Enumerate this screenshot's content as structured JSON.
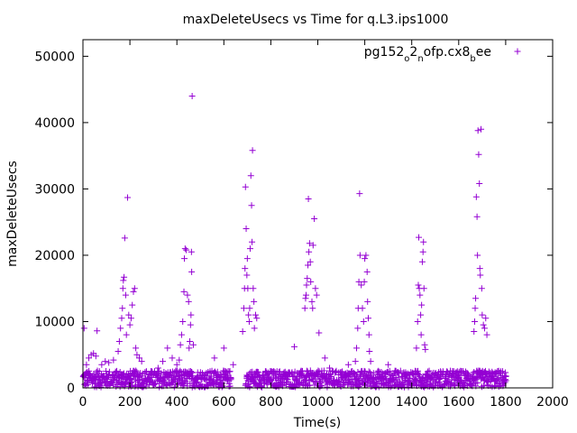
{
  "chart_data": {
    "type": "scatter",
    "title": "maxDeleteUsecs vs Time for q.L3.ips1000",
    "xlabel": "Time(s)",
    "ylabel": "maxDeleteUsecs",
    "xlim": [
      0,
      2000
    ],
    "ylim": [
      0,
      52500
    ],
    "x_ticks": [
      0,
      200,
      400,
      600,
      800,
      1000,
      1200,
      1400,
      1600,
      1800,
      2000
    ],
    "y_ticks": [
      0,
      10000,
      20000,
      30000,
      40000,
      50000
    ],
    "grid": false,
    "legend_position": "top-right",
    "colors": {
      "series": "#9400d3",
      "axis": "#000000"
    },
    "series": [
      {
        "name": "pg152_o2_nofp.cx8_bee",
        "legend_parts": [
          {
            "text": "pg152",
            "sub": false
          },
          {
            "text": "o",
            "sub": true
          },
          {
            "text": "2",
            "sub": false
          },
          {
            "text": "n",
            "sub": true
          },
          {
            "text": "ofp.cx8",
            "sub": false
          },
          {
            "text": "b",
            "sub": true
          },
          {
            "text": "ee",
            "sub": false
          }
        ],
        "points": [
          [
            5,
            9000
          ],
          [
            15,
            3500
          ],
          [
            25,
            4500
          ],
          [
            35,
            5000
          ],
          [
            45,
            5200
          ],
          [
            55,
            4800
          ],
          [
            60,
            8600
          ],
          [
            70,
            2500
          ],
          [
            80,
            3500
          ],
          [
            95,
            4000
          ],
          [
            110,
            3800
          ],
          [
            130,
            4200
          ],
          [
            150,
            5500
          ],
          [
            155,
            7000
          ],
          [
            160,
            9000
          ],
          [
            165,
            10500
          ],
          [
            168,
            12000
          ],
          [
            170,
            15000
          ],
          [
            172,
            16200
          ],
          [
            175,
            16700
          ],
          [
            178,
            22600
          ],
          [
            182,
            14000
          ],
          [
            185,
            8000
          ],
          [
            190,
            28700
          ],
          [
            195,
            11000
          ],
          [
            200,
            9500
          ],
          [
            205,
            10500
          ],
          [
            210,
            12500
          ],
          [
            215,
            14500
          ],
          [
            220,
            15000
          ],
          [
            225,
            6000
          ],
          [
            230,
            5000
          ],
          [
            240,
            4500
          ],
          [
            250,
            4000
          ],
          [
            270,
            2500
          ],
          [
            300,
            2000
          ],
          [
            320,
            3000
          ],
          [
            340,
            4000
          ],
          [
            360,
            6000
          ],
          [
            380,
            4500
          ],
          [
            400,
            3500
          ],
          [
            410,
            4200
          ],
          [
            415,
            6500
          ],
          [
            420,
            8000
          ],
          [
            425,
            10000
          ],
          [
            430,
            14500
          ],
          [
            432,
            19500
          ],
          [
            435,
            21000
          ],
          [
            440,
            20800
          ],
          [
            445,
            14000
          ],
          [
            450,
            13000
          ],
          [
            452,
            6000
          ],
          [
            455,
            7000
          ],
          [
            458,
            9500
          ],
          [
            460,
            11000
          ],
          [
            462,
            20500
          ],
          [
            463,
            17500
          ],
          [
            465,
            44000
          ],
          [
            470,
            6500
          ],
          [
            520,
            2000
          ],
          [
            560,
            4500
          ],
          [
            600,
            6000
          ],
          [
            640,
            3500
          ],
          [
            680,
            8500
          ],
          [
            685,
            12000
          ],
          [
            688,
            15000
          ],
          [
            690,
            18000
          ],
          [
            692,
            30300
          ],
          [
            695,
            24000
          ],
          [
            698,
            17000
          ],
          [
            700,
            19500
          ],
          [
            702,
            15000
          ],
          [
            705,
            11000
          ],
          [
            708,
            10000
          ],
          [
            710,
            12000
          ],
          [
            712,
            21000
          ],
          [
            715,
            32000
          ],
          [
            718,
            27500
          ],
          [
            720,
            22000
          ],
          [
            722,
            35800
          ],
          [
            725,
            15000
          ],
          [
            728,
            13000
          ],
          [
            730,
            9000
          ],
          [
            735,
            11000
          ],
          [
            740,
            10500
          ],
          [
            780,
            2000
          ],
          [
            820,
            1500
          ],
          [
            860,
            2000
          ],
          [
            900,
            6200
          ],
          [
            930,
            2000
          ],
          [
            945,
            12000
          ],
          [
            948,
            13500
          ],
          [
            950,
            14000
          ],
          [
            952,
            15500
          ],
          [
            955,
            16500
          ],
          [
            958,
            18500
          ],
          [
            960,
            28500
          ],
          [
            962,
            20500
          ],
          [
            965,
            21800
          ],
          [
            968,
            19000
          ],
          [
            970,
            16000
          ],
          [
            975,
            13000
          ],
          [
            978,
            12000
          ],
          [
            980,
            21500
          ],
          [
            985,
            25500
          ],
          [
            990,
            15000
          ],
          [
            995,
            14000
          ],
          [
            1005,
            8300
          ],
          [
            1030,
            4500
          ],
          [
            1050,
            3000
          ],
          [
            1100,
            2000
          ],
          [
            1130,
            3500
          ],
          [
            1160,
            4000
          ],
          [
            1165,
            6000
          ],
          [
            1170,
            9000
          ],
          [
            1172,
            12000
          ],
          [
            1175,
            16000
          ],
          [
            1178,
            29300
          ],
          [
            1180,
            20000
          ],
          [
            1185,
            15500
          ],
          [
            1190,
            12000
          ],
          [
            1195,
            10000
          ],
          [
            1198,
            16000
          ],
          [
            1200,
            19500
          ],
          [
            1205,
            20000
          ],
          [
            1210,
            17500
          ],
          [
            1212,
            13000
          ],
          [
            1215,
            10500
          ],
          [
            1218,
            8000
          ],
          [
            1220,
            5500
          ],
          [
            1225,
            4000
          ],
          [
            1260,
            2000
          ],
          [
            1300,
            3500
          ],
          [
            1330,
            2500
          ],
          [
            1370,
            2000
          ],
          [
            1420,
            6000
          ],
          [
            1425,
            10000
          ],
          [
            1428,
            15500
          ],
          [
            1430,
            22700
          ],
          [
            1432,
            15000
          ],
          [
            1435,
            14000
          ],
          [
            1438,
            11000
          ],
          [
            1440,
            8000
          ],
          [
            1442,
            12500
          ],
          [
            1445,
            19000
          ],
          [
            1448,
            20500
          ],
          [
            1450,
            22000
          ],
          [
            1452,
            15000
          ],
          [
            1455,
            6500
          ],
          [
            1458,
            5800
          ],
          [
            1500,
            2000
          ],
          [
            1550,
            2500
          ],
          [
            1600,
            2000
          ],
          [
            1640,
            1500
          ],
          [
            1665,
            8500
          ],
          [
            1668,
            10000
          ],
          [
            1670,
            12000
          ],
          [
            1672,
            13500
          ],
          [
            1675,
            28800
          ],
          [
            1678,
            25800
          ],
          [
            1680,
            20000
          ],
          [
            1682,
            38800
          ],
          [
            1685,
            35200
          ],
          [
            1688,
            30800
          ],
          [
            1690,
            18000
          ],
          [
            1692,
            17000
          ],
          [
            1695,
            39000
          ],
          [
            1698,
            15000
          ],
          [
            1700,
            11000
          ],
          [
            1705,
            9500
          ],
          [
            1710,
            9000
          ],
          [
            1715,
            10500
          ],
          [
            1720,
            8000
          ],
          [
            1750,
            1500
          ],
          [
            1790,
            1000
          ]
        ],
        "baseline_band": {
          "x_range": [
            0,
            1800
          ],
          "y_range": [
            100,
            2600
          ],
          "gaps": [
            [
              630,
              690
            ],
            [
              1810,
              2000
            ]
          ]
        }
      }
    ]
  }
}
